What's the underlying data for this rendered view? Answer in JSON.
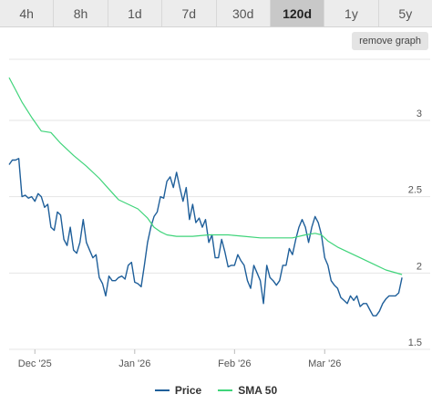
{
  "tabs": [
    {
      "label": "4h",
      "active": false
    },
    {
      "label": "8h",
      "active": false
    },
    {
      "label": "1d",
      "active": false
    },
    {
      "label": "7d",
      "active": false
    },
    {
      "label": "30d",
      "active": false
    },
    {
      "label": "120d",
      "active": true
    },
    {
      "label": "1y",
      "active": false
    },
    {
      "label": "5y",
      "active": false
    }
  ],
  "remove_graph_label": "remove graph",
  "colors": {
    "price": "#1f5f9a",
    "sma": "#3fd47a",
    "grid": "#e4e4e4",
    "active_tab": "#c8c8c8"
  },
  "chart_data": {
    "type": "line",
    "x_start": "2025-11-23",
    "x_end": "2026-03-23",
    "x_ticks": [
      {
        "label": "Dec '25",
        "date": "2025-12-01"
      },
      {
        "label": "Jan '26",
        "date": "2026-01-01"
      },
      {
        "label": "Feb '26",
        "date": "2026-02-01"
      },
      {
        "label": "Mar '26",
        "date": "2026-03-01"
      }
    ],
    "y_ticks": [
      1.5,
      2,
      2.5,
      3
    ],
    "y_tick_labels": [
      "1.5",
      "2",
      "2.5",
      "3"
    ],
    "ylim": [
      1.5,
      3.4
    ],
    "grid": true,
    "legend_position": "bottom",
    "series": [
      {
        "name": "Price",
        "points": [
          [
            "2025-11-23",
            2.71
          ],
          [
            "2025-11-24",
            2.74
          ],
          [
            "2025-11-25",
            2.74
          ],
          [
            "2025-11-26",
            2.75
          ],
          [
            "2025-11-27",
            2.5
          ],
          [
            "2025-11-28",
            2.51
          ],
          [
            "2025-11-29",
            2.49
          ],
          [
            "2025-11-30",
            2.5
          ],
          [
            "2025-12-01",
            2.47
          ],
          [
            "2025-12-02",
            2.52
          ],
          [
            "2025-12-03",
            2.5
          ],
          [
            "2025-12-04",
            2.43
          ],
          [
            "2025-12-05",
            2.45
          ],
          [
            "2025-12-06",
            2.3
          ],
          [
            "2025-12-07",
            2.28
          ],
          [
            "2025-12-08",
            2.4
          ],
          [
            "2025-12-09",
            2.38
          ],
          [
            "2025-12-10",
            2.22
          ],
          [
            "2025-12-11",
            2.18
          ],
          [
            "2025-12-12",
            2.3
          ],
          [
            "2025-12-13",
            2.15
          ],
          [
            "2025-12-14",
            2.13
          ],
          [
            "2025-12-15",
            2.2
          ],
          [
            "2025-12-16",
            2.35
          ],
          [
            "2025-12-17",
            2.2
          ],
          [
            "2025-12-18",
            2.15
          ],
          [
            "2025-12-19",
            2.1
          ],
          [
            "2025-12-20",
            2.12
          ],
          [
            "2025-12-21",
            1.97
          ],
          [
            "2025-12-22",
            1.93
          ],
          [
            "2025-12-23",
            1.85
          ],
          [
            "2025-12-24",
            1.98
          ],
          [
            "2025-12-25",
            1.95
          ],
          [
            "2025-12-26",
            1.95
          ],
          [
            "2025-12-27",
            1.97
          ],
          [
            "2025-12-28",
            1.98
          ],
          [
            "2025-12-29",
            1.96
          ],
          [
            "2025-12-30",
            2.05
          ],
          [
            "2025-12-31",
            2.07
          ],
          [
            "2026-01-01",
            1.94
          ],
          [
            "2026-01-02",
            1.93
          ],
          [
            "2026-01-03",
            1.91
          ],
          [
            "2026-01-04",
            2.05
          ],
          [
            "2026-01-05",
            2.2
          ],
          [
            "2026-01-06",
            2.3
          ],
          [
            "2026-01-07",
            2.37
          ],
          [
            "2026-01-08",
            2.4
          ],
          [
            "2026-01-09",
            2.5
          ],
          [
            "2026-01-10",
            2.49
          ],
          [
            "2026-01-11",
            2.6
          ],
          [
            "2026-01-12",
            2.63
          ],
          [
            "2026-01-13",
            2.56
          ],
          [
            "2026-01-14",
            2.66
          ],
          [
            "2026-01-15",
            2.56
          ],
          [
            "2026-01-16",
            2.47
          ],
          [
            "2026-01-17",
            2.56
          ],
          [
            "2026-01-18",
            2.35
          ],
          [
            "2026-01-19",
            2.45
          ],
          [
            "2026-01-20",
            2.33
          ],
          [
            "2026-01-21",
            2.36
          ],
          [
            "2026-01-22",
            2.3
          ],
          [
            "2026-01-23",
            2.35
          ],
          [
            "2026-01-24",
            2.2
          ],
          [
            "2026-01-25",
            2.25
          ],
          [
            "2026-01-26",
            2.1
          ],
          [
            "2026-01-27",
            2.1
          ],
          [
            "2026-01-28",
            2.22
          ],
          [
            "2026-01-29",
            2.14
          ],
          [
            "2026-01-30",
            2.04
          ],
          [
            "2026-01-31",
            2.05
          ],
          [
            "2026-02-01",
            2.05
          ],
          [
            "2026-02-02",
            2.12
          ],
          [
            "2026-02-03",
            2.08
          ],
          [
            "2026-02-04",
            2.05
          ],
          [
            "2026-02-05",
            1.95
          ],
          [
            "2026-02-06",
            1.9
          ],
          [
            "2026-02-07",
            2.05
          ],
          [
            "2026-02-08",
            2.0
          ],
          [
            "2026-02-09",
            1.95
          ],
          [
            "2026-02-10",
            1.8
          ],
          [
            "2026-02-11",
            2.05
          ],
          [
            "2026-02-12",
            1.97
          ],
          [
            "2026-02-13",
            1.95
          ],
          [
            "2026-02-14",
            1.92
          ],
          [
            "2026-02-15",
            1.95
          ],
          [
            "2026-02-16",
            2.05
          ],
          [
            "2026-02-17",
            2.05
          ],
          [
            "2026-02-18",
            2.16
          ],
          [
            "2026-02-19",
            2.12
          ],
          [
            "2026-02-20",
            2.22
          ],
          [
            "2026-02-21",
            2.3
          ],
          [
            "2026-02-22",
            2.35
          ],
          [
            "2026-02-23",
            2.3
          ],
          [
            "2026-02-24",
            2.2
          ],
          [
            "2026-02-25",
            2.3
          ],
          [
            "2026-02-26",
            2.37
          ],
          [
            "2026-02-27",
            2.33
          ],
          [
            "2026-02-28",
            2.25
          ],
          [
            "2026-03-01",
            2.1
          ],
          [
            "2026-03-02",
            2.05
          ],
          [
            "2026-03-03",
            1.95
          ],
          [
            "2026-03-04",
            1.92
          ],
          [
            "2026-03-05",
            1.9
          ],
          [
            "2026-03-06",
            1.84
          ],
          [
            "2026-03-07",
            1.82
          ],
          [
            "2026-03-08",
            1.8
          ],
          [
            "2026-03-09",
            1.85
          ],
          [
            "2026-03-10",
            1.82
          ],
          [
            "2026-03-11",
            1.85
          ],
          [
            "2026-03-12",
            1.78
          ],
          [
            "2026-03-13",
            1.8
          ],
          [
            "2026-03-14",
            1.8
          ],
          [
            "2026-03-15",
            1.76
          ],
          [
            "2026-03-16",
            1.72
          ],
          [
            "2026-03-17",
            1.72
          ],
          [
            "2026-03-18",
            1.75
          ],
          [
            "2026-03-19",
            1.8
          ],
          [
            "2026-03-20",
            1.83
          ],
          [
            "2026-03-21",
            1.85
          ],
          [
            "2026-03-22",
            1.85
          ],
          [
            "2026-03-23",
            1.85
          ],
          [
            "2026-03-24",
            1.87
          ],
          [
            "2026-03-25",
            1.97
          ]
        ]
      },
      {
        "name": "SMA 50",
        "points": [
          [
            "2025-11-23",
            3.28
          ],
          [
            "2025-11-25",
            3.2
          ],
          [
            "2025-11-27",
            3.12
          ],
          [
            "2025-11-30",
            3.02
          ],
          [
            "2025-12-03",
            2.93
          ],
          [
            "2025-12-06",
            2.92
          ],
          [
            "2025-12-09",
            2.85
          ],
          [
            "2025-12-13",
            2.77
          ],
          [
            "2025-12-17",
            2.7
          ],
          [
            "2025-12-21",
            2.62
          ],
          [
            "2025-12-24",
            2.55
          ],
          [
            "2025-12-27",
            2.48
          ],
          [
            "2025-12-30",
            2.45
          ],
          [
            "2026-01-02",
            2.42
          ],
          [
            "2026-01-05",
            2.36
          ],
          [
            "2026-01-07",
            2.3
          ],
          [
            "2026-01-09",
            2.27
          ],
          [
            "2026-01-11",
            2.25
          ],
          [
            "2026-01-14",
            2.24
          ],
          [
            "2026-01-19",
            2.24
          ],
          [
            "2026-01-24",
            2.25
          ],
          [
            "2026-01-30",
            2.25
          ],
          [
            "2026-02-04",
            2.24
          ],
          [
            "2026-02-09",
            2.23
          ],
          [
            "2026-02-14",
            2.23
          ],
          [
            "2026-02-19",
            2.23
          ],
          [
            "2026-02-23",
            2.25
          ],
          [
            "2026-02-26",
            2.26
          ],
          [
            "2026-02-28",
            2.25
          ],
          [
            "2026-03-02",
            2.21
          ],
          [
            "2026-03-05",
            2.17
          ],
          [
            "2026-03-08",
            2.14
          ],
          [
            "2026-03-12",
            2.1
          ],
          [
            "2026-03-16",
            2.06
          ],
          [
            "2026-03-20",
            2.02
          ],
          [
            "2026-03-25",
            1.99
          ]
        ]
      }
    ]
  }
}
